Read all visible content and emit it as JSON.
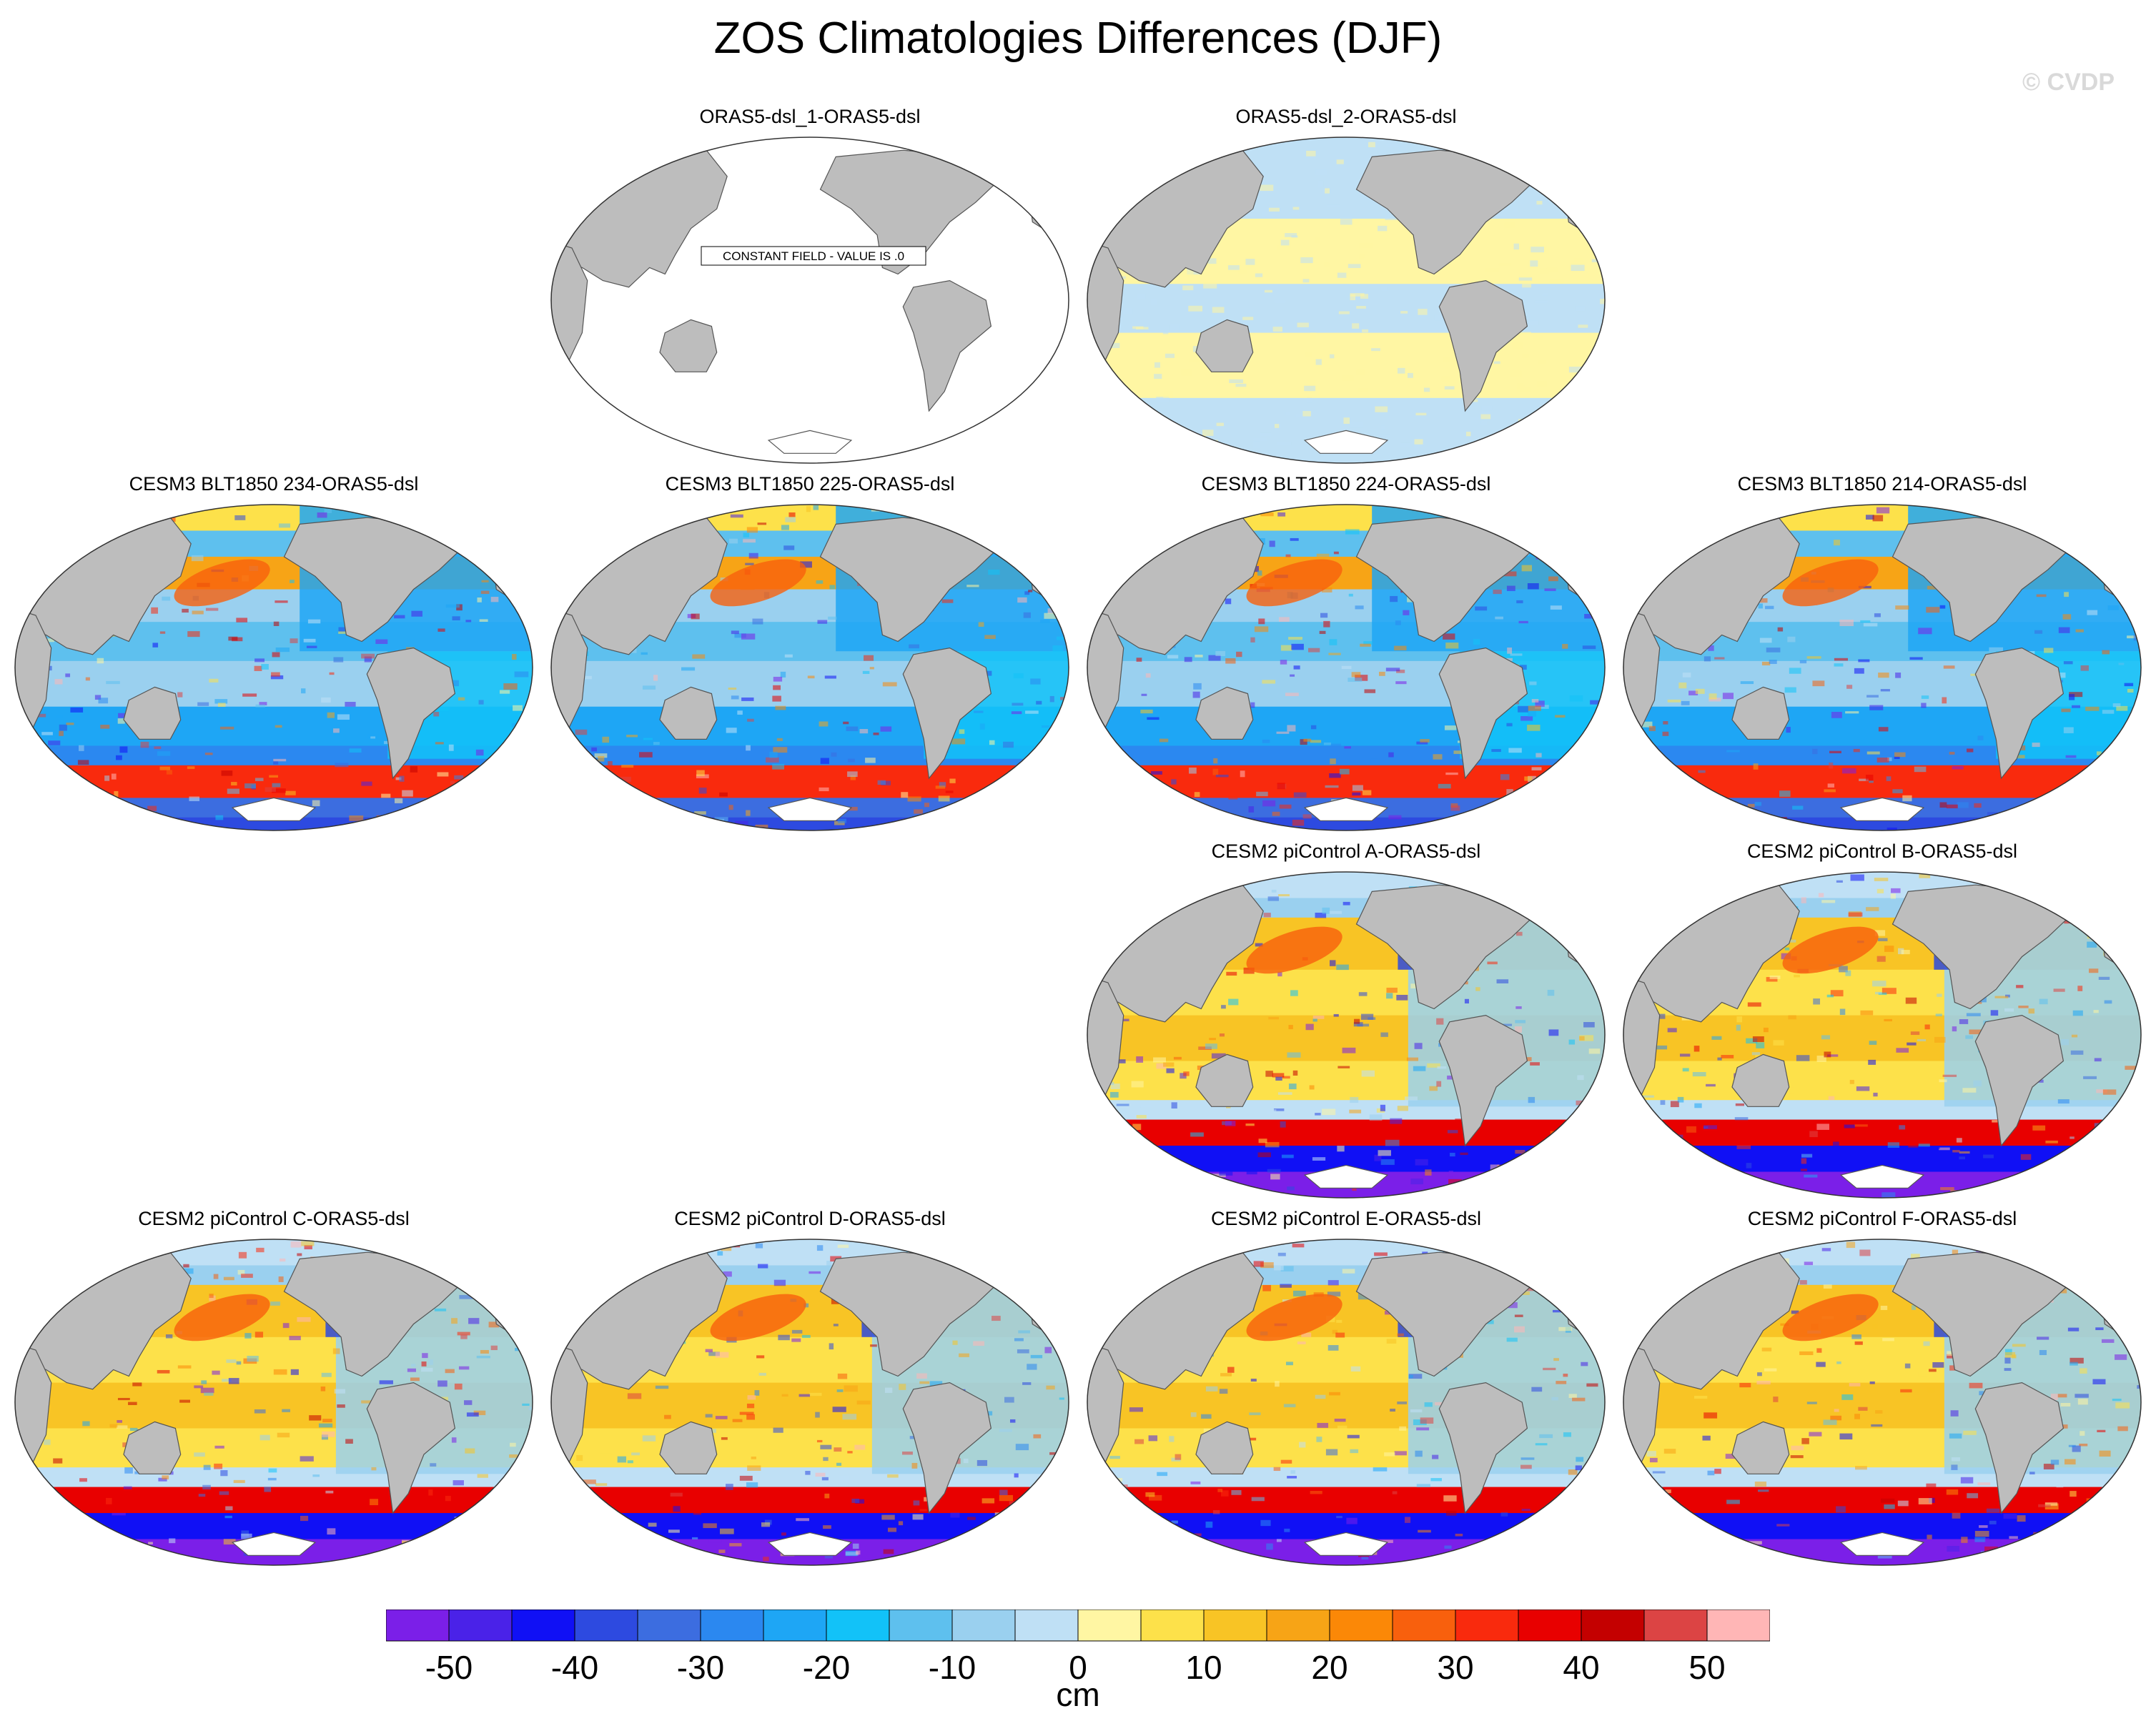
{
  "title": "ZOS Climatologies Differences (DJF)",
  "credit": "© CVDP",
  "colors": {
    "land": "#bdbdbd",
    "land_edge": "#555555",
    "palette": [
      "#7b1fe8",
      "#4a22e8",
      "#1010f5",
      "#2d4ae0",
      "#3c6de0",
      "#2b88f0",
      "#1ea6f5",
      "#12c2f8",
      "#5ec0ee",
      "#9ad0ef",
      "#bfe0f5",
      "#fff6a3",
      "#fde14a",
      "#f8c425",
      "#f7a416",
      "#fb8807",
      "#f8600d",
      "#f92a0d",
      "#e80000",
      "#c40000",
      "#dc4444",
      "#ffb6b6"
    ]
  },
  "panels": [
    {
      "title": "ORAS5-dsl_1-ORAS5-dsl",
      "row": 0,
      "col": 1,
      "pattern": "constant",
      "note": "CONSTANT FIELD - VALUE IS .0"
    },
    {
      "title": "ORAS5-dsl_2-ORAS5-dsl",
      "row": 0,
      "col": 2,
      "pattern": "near-zero"
    },
    {
      "title": "CESM3 BLT1850 234-ORAS5-dsl",
      "row": 1,
      "col": 0,
      "pattern": "cesm3"
    },
    {
      "title": "CESM3 BLT1850 225-ORAS5-dsl",
      "row": 1,
      "col": 1,
      "pattern": "cesm3"
    },
    {
      "title": "CESM3 BLT1850 224-ORAS5-dsl",
      "row": 1,
      "col": 2,
      "pattern": "cesm3"
    },
    {
      "title": "CESM3 BLT1850 214-ORAS5-dsl",
      "row": 1,
      "col": 3,
      "pattern": "cesm3"
    },
    {
      "title": "CESM2 piControl A-ORAS5-dsl",
      "row": 2,
      "col": 2,
      "pattern": "cesm2"
    },
    {
      "title": "CESM2 piControl B-ORAS5-dsl",
      "row": 2,
      "col": 3,
      "pattern": "cesm2"
    },
    {
      "title": "CESM2 piControl C-ORAS5-dsl",
      "row": 3,
      "col": 0,
      "pattern": "cesm2"
    },
    {
      "title": "CESM2 piControl D-ORAS5-dsl",
      "row": 3,
      "col": 1,
      "pattern": "cesm2"
    },
    {
      "title": "CESM2 piControl E-ORAS5-dsl",
      "row": 3,
      "col": 2,
      "pattern": "cesm2"
    },
    {
      "title": "CESM2 piControl F-ORAS5-dsl",
      "row": 3,
      "col": 3,
      "pattern": "cesm2"
    }
  ],
  "colorbar": {
    "levels": [
      -55,
      -50,
      -45,
      -40,
      -35,
      -30,
      -25,
      -20,
      -15,
      -10,
      -5,
      0,
      5,
      10,
      15,
      20,
      25,
      30,
      35,
      40,
      45,
      50
    ],
    "tick_labels": [
      "-50",
      "-40",
      "-30",
      "-20",
      "-10",
      "0",
      "10",
      "20",
      "30",
      "40",
      "50"
    ],
    "units": "cm"
  }
}
